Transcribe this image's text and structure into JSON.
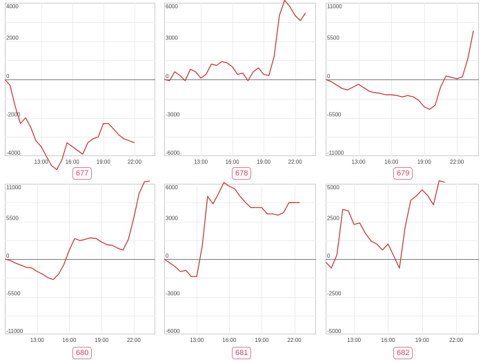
{
  "chart_data": [
    {
      "type": "line",
      "label": "677",
      "yticks": [
        4000,
        2000,
        0,
        -2000,
        -4000
      ],
      "ylim": [
        -4000,
        4000
      ],
      "xticks": [
        "13:00",
        "16:00",
        "19:00",
        "22:00"
      ],
      "xlim": [
        9.5,
        24
      ],
      "grid": true,
      "x": [
        9.5,
        10,
        10.5,
        11,
        11.5,
        12,
        12.5,
        13,
        13.5,
        14,
        14.5,
        15,
        15.5,
        16,
        16.5,
        17,
        17.5,
        18,
        18.5,
        19,
        19.5,
        20,
        20.5,
        21,
        21.5,
        22
      ],
      "values": [
        0,
        -300,
        -1400,
        -2300,
        -2000,
        -2500,
        -3200,
        -3500,
        -4000,
        -4500,
        -4700,
        -4200,
        -3300,
        -3500,
        -3700,
        -3900,
        -3300,
        -3100,
        -3000,
        -2300,
        -2300,
        -2600,
        -2900,
        -3100,
        -3200,
        -3300
      ]
    },
    {
      "type": "line",
      "label": "678",
      "yticks": [
        6000,
        3000,
        0,
        -3000,
        -6000
      ],
      "ylim": [
        -6000,
        6000
      ],
      "xticks": [
        "13:00",
        "16:00",
        "19:00",
        "22:00"
      ],
      "xlim": [
        9.5,
        24
      ],
      "grid": true,
      "x": [
        9.5,
        10,
        10.5,
        11,
        11.5,
        12,
        12.5,
        13,
        13.5,
        14,
        14.5,
        15,
        15.5,
        16,
        16.5,
        17,
        17.5,
        18,
        18.5,
        19,
        19.5,
        20,
        20.5,
        21,
        21.5,
        22,
        22.5,
        23
      ],
      "values": [
        0,
        -100,
        600,
        300,
        -100,
        800,
        600,
        100,
        400,
        1200,
        1100,
        1400,
        1300,
        1000,
        400,
        500,
        -100,
        600,
        900,
        400,
        300,
        1800,
        5000,
        6200,
        5700,
        5000,
        4600,
        5200
      ]
    },
    {
      "type": "line",
      "label": "679",
      "yticks": [
        11000,
        5500,
        0,
        -5500,
        -11000
      ],
      "ylim": [
        -11000,
        11000
      ],
      "xticks": [
        "13:00",
        "16:00",
        "19:00",
        "22:00"
      ],
      "xlim": [
        10,
        24
      ],
      "grid": true,
      "x": [
        10,
        10.5,
        11,
        11.5,
        12,
        12.5,
        13,
        13.5,
        14,
        14.5,
        15,
        15.5,
        16,
        16.5,
        17,
        17.5,
        18,
        18.5,
        19,
        19.5,
        20,
        20.5,
        21,
        21.5,
        22,
        22.5,
        23,
        23.5
      ],
      "values": [
        0,
        -300,
        -800,
        -1300,
        -1500,
        -1100,
        -700,
        -1200,
        -1700,
        -1900,
        -2000,
        -2200,
        -2200,
        -2300,
        -2500,
        -2300,
        -2500,
        -3000,
        -3900,
        -4300,
        -3700,
        -1100,
        500,
        300,
        100,
        400,
        3000,
        7000
      ]
    },
    {
      "type": "line",
      "label": "680",
      "yticks": [
        11000,
        5500,
        0,
        -5500,
        -11000
      ],
      "ylim": [
        -11000,
        11000
      ],
      "xticks": [
        "13:00",
        "16:00",
        "19:00",
        "22:00"
      ],
      "xlim": [
        10,
        24
      ],
      "grid": true,
      "x": [
        10,
        10.5,
        11,
        11.5,
        12,
        12.5,
        13,
        13.5,
        14,
        14.5,
        15,
        15.5,
        16,
        16.5,
        17,
        17.5,
        18,
        18.5,
        19,
        19.5,
        20,
        20.5,
        21,
        21.5,
        22,
        22.5,
        23,
        23.5
      ],
      "values": [
        0,
        -200,
        -600,
        -900,
        -1200,
        -1300,
        -1800,
        -2200,
        -2700,
        -3000,
        -2200,
        -800,
        1300,
        3000,
        2700,
        2900,
        3100,
        3000,
        2500,
        2100,
        2000,
        1600,
        1300,
        2900,
        6000,
        9600,
        11300,
        11400
      ]
    },
    {
      "type": "line",
      "label": "681",
      "yticks": [
        6000,
        3000,
        0,
        -3000,
        -6000
      ],
      "ylim": [
        -6000,
        6000
      ],
      "xticks": [
        "13:00",
        "16:00",
        "19:00",
        "22:00"
      ],
      "xlim": [
        10,
        24
      ],
      "grid": true,
      "x": [
        10,
        10.5,
        11,
        11.5,
        12,
        12.5,
        13,
        13.5,
        14,
        14.5,
        15,
        15.5,
        16,
        16.5,
        17,
        17.5,
        18,
        18.5,
        19,
        19.5,
        20,
        20.5,
        21,
        21.5,
        22,
        22.5
      ],
      "values": [
        0,
        -300,
        -600,
        -1000,
        -900,
        -1400,
        -1400,
        1000,
        5000,
        4400,
        5200,
        6100,
        5800,
        5600,
        5000,
        4500,
        4100,
        4100,
        4100,
        3600,
        3600,
        3500,
        3700,
        4500,
        4500,
        4500
      ]
    },
    {
      "type": "line",
      "label": "682",
      "yticks": [
        5000,
        2500,
        0,
        -2500,
        -5000
      ],
      "ylim": [
        -5000,
        5000
      ],
      "xticks": [
        "13:00",
        "16:00",
        "19:00",
        "22:00"
      ],
      "xlim": [
        10.5,
        24
      ],
      "grid": true,
      "x": [
        10.5,
        11,
        11.5,
        12,
        12.5,
        13,
        13.5,
        14,
        14.5,
        15,
        15.5,
        16,
        16.5,
        17,
        17.5,
        18,
        18.5,
        19,
        19.5,
        20,
        20.5,
        21
      ],
      "values": [
        -200,
        -600,
        300,
        3300,
        3200,
        2300,
        2400,
        1700,
        1200,
        1000,
        600,
        1000,
        200,
        -600,
        2100,
        3900,
        4200,
        4600,
        4200,
        3600,
        5200,
        5100
      ]
    }
  ]
}
